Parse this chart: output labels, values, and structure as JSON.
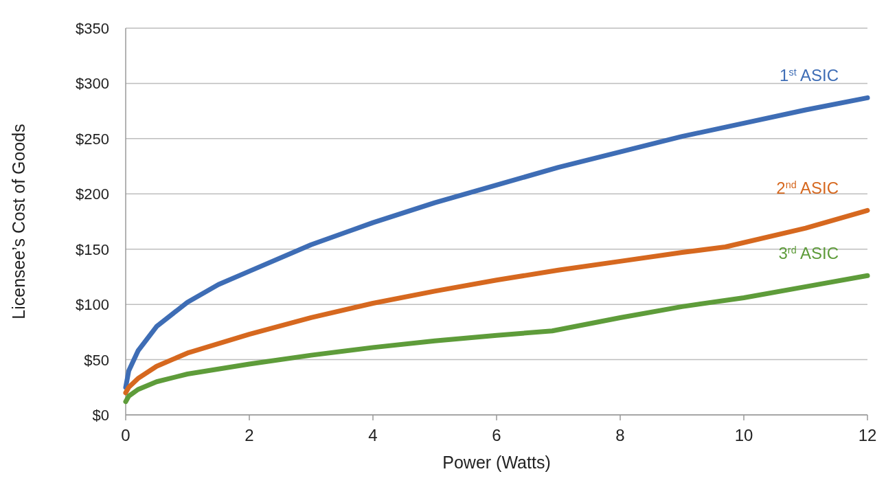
{
  "chart_data": {
    "type": "line",
    "xlabel": "Power (Watts)",
    "ylabel": "Licensee’s Cost of Goods",
    "xlim": [
      0,
      12
    ],
    "ylim": [
      0,
      350
    ],
    "xticks": [
      0,
      2,
      4,
      6,
      8,
      10,
      12
    ],
    "yticks": [
      {
        "value": 0,
        "label": "$0"
      },
      {
        "value": 50,
        "label": "$50"
      },
      {
        "value": 100,
        "label": "$100"
      },
      {
        "value": 150,
        "label": "$150"
      },
      {
        "value": 200,
        "label": "$200"
      },
      {
        "value": 250,
        "label": "$250"
      },
      {
        "value": 300,
        "label": "$300"
      },
      {
        "value": 350,
        "label": "$350"
      }
    ],
    "grid": "y",
    "marker": "none",
    "line_style": "solid",
    "series": [
      {
        "name": "1$^{st}$ ASIC",
        "color": "#3e6db5",
        "x": [
          0,
          0.05,
          0.2,
          0.5,
          1,
          1.5,
          2,
          3,
          4,
          5,
          6,
          7,
          8,
          9,
          10,
          11,
          12
        ],
        "values": [
          25,
          40,
          58,
          80,
          102,
          118,
          130,
          154,
          174,
          192,
          208,
          224,
          238,
          252,
          264,
          276,
          287
        ]
      },
      {
        "name": "2$^{nd}$ ASIC",
        "color": "#d6681f",
        "x": [
          0,
          0.05,
          0.2,
          0.5,
          1,
          2,
          3,
          4,
          5,
          6,
          7,
          8,
          9,
          9.7,
          11,
          12
        ],
        "values": [
          20,
          25,
          33,
          44,
          56,
          73,
          88,
          101,
          112,
          122,
          131,
          139,
          147,
          152,
          169,
          185
        ]
      },
      {
        "name": "3$^{rd}$ ASIC",
        "color": "#5e9c3a",
        "x": [
          0,
          0.05,
          0.2,
          0.5,
          1,
          2,
          3,
          4,
          5,
          6,
          6.9,
          8,
          9,
          10,
          11,
          12
        ],
        "values": [
          12,
          17,
          23,
          30,
          37,
          46,
          54,
          61,
          67,
          72,
          76,
          88,
          98,
          106,
          116,
          126
        ]
      }
    ]
  }
}
